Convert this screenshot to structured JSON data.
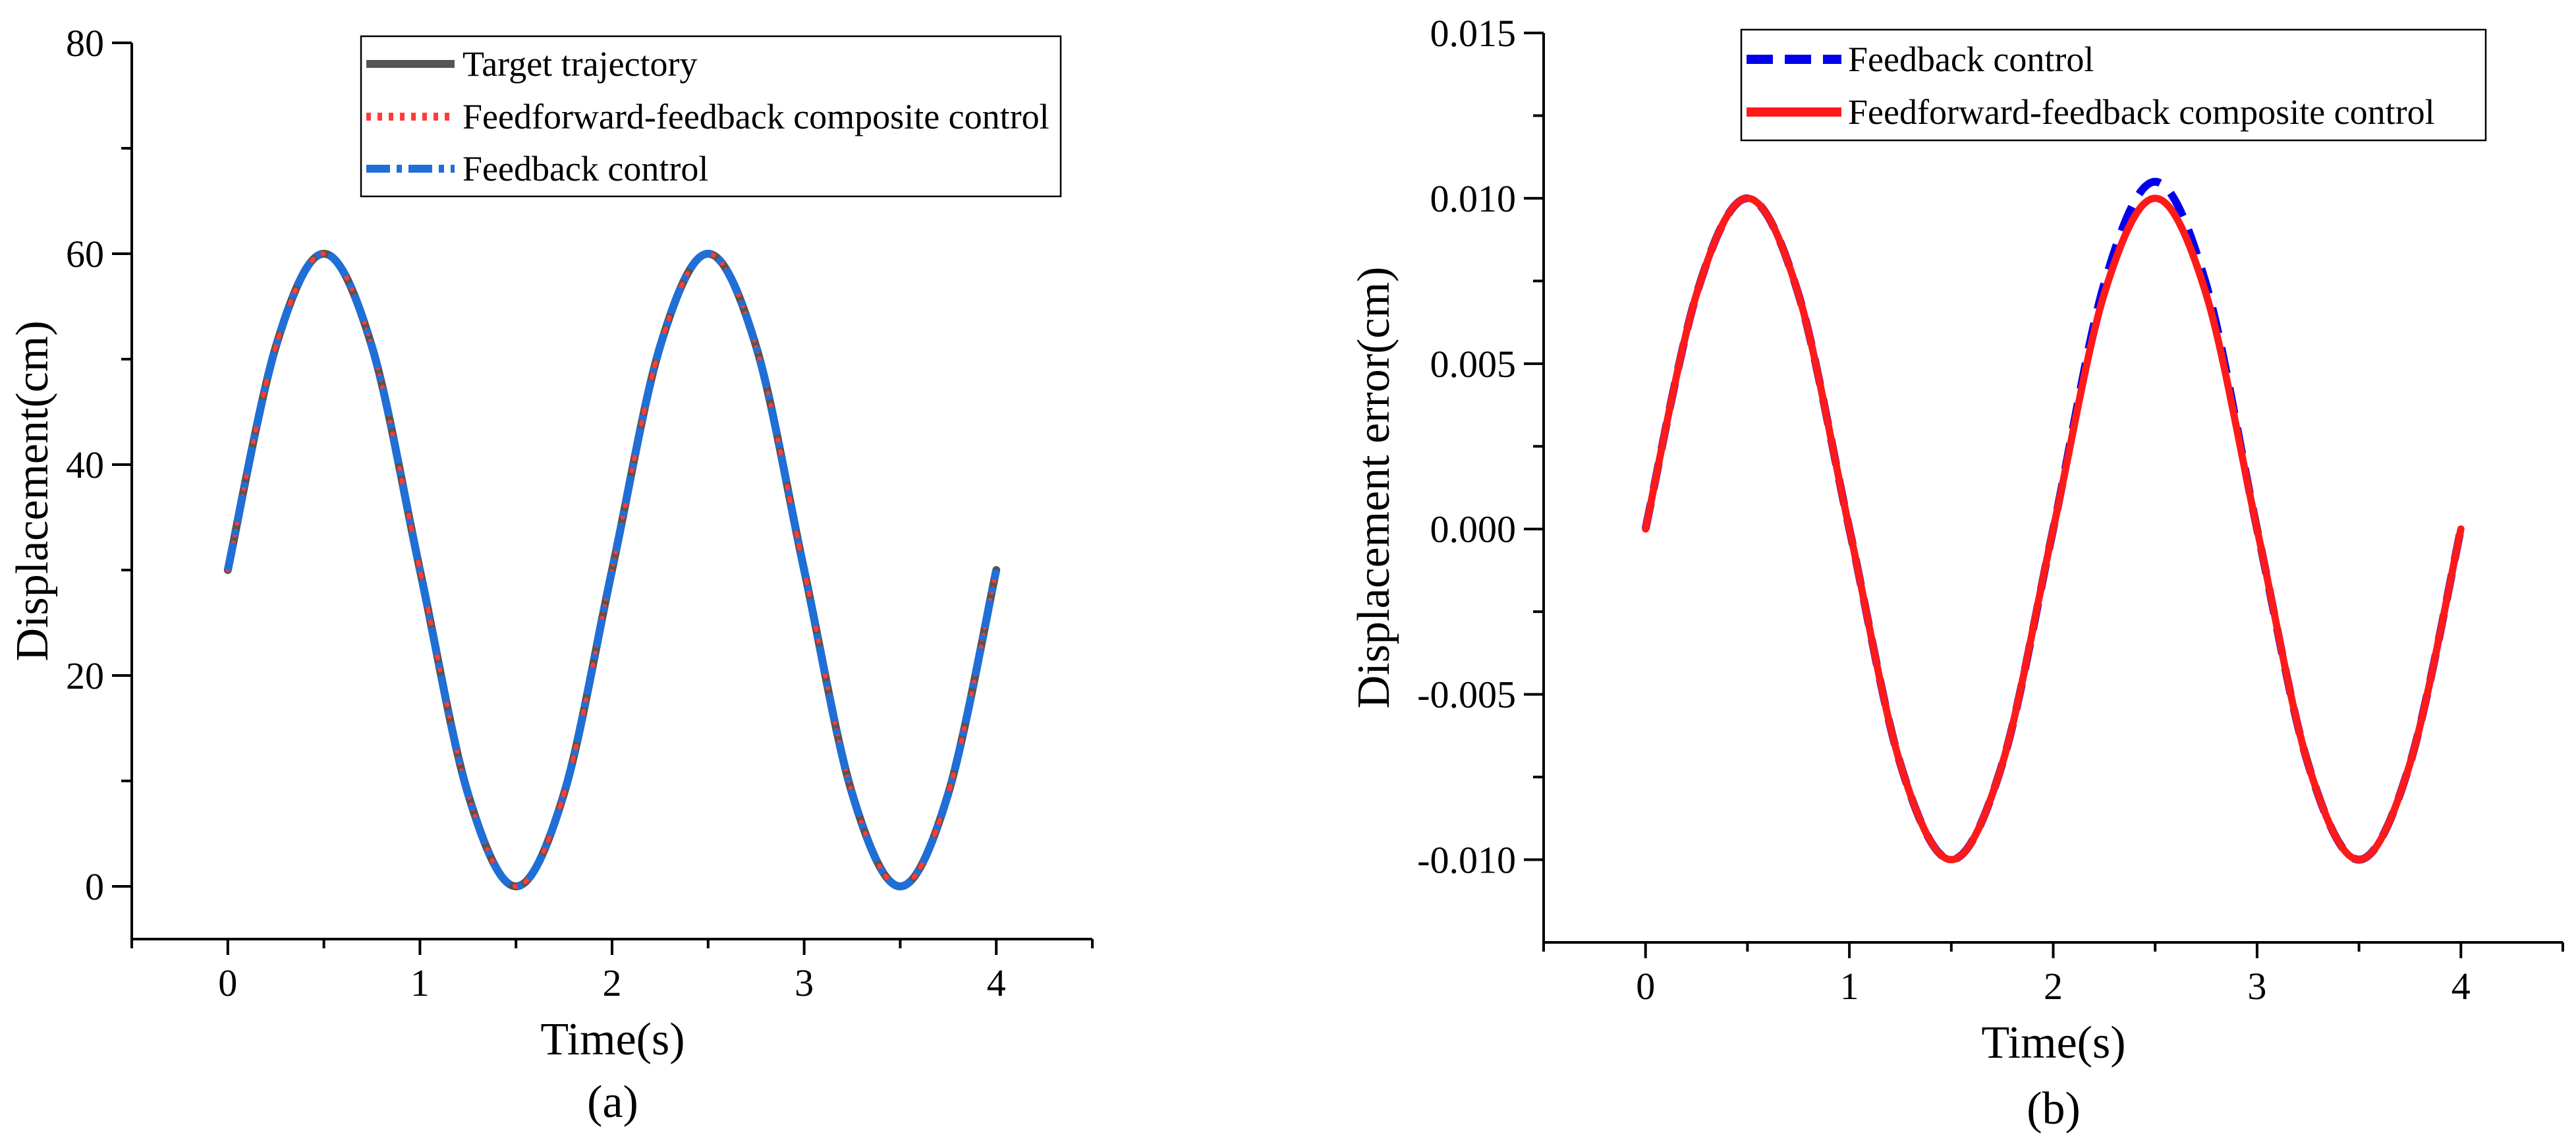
{
  "chart_data": [
    {
      "type": "line",
      "panel_label": "(a)",
      "title": "",
      "xlabel": "Time(s)",
      "ylabel": "Displacement(cm)",
      "xlim": [
        -0.5,
        4.5
      ],
      "ylim": [
        -5,
        80
      ],
      "xticks": [
        0,
        1,
        2,
        3,
        4
      ],
      "xtick_labels": [
        "0",
        "1",
        "2",
        "3",
        "4"
      ],
      "yticks": [
        0,
        20,
        40,
        60,
        80
      ],
      "ytick_labels": [
        "0",
        "20",
        "40",
        "60",
        "80"
      ],
      "grid": false,
      "legend_position": "top-right",
      "x": [
        0,
        0.25,
        0.5,
        0.75,
        1.0,
        1.25,
        1.5,
        1.75,
        2.0,
        2.25,
        2.5,
        2.75,
        3.0,
        3.25,
        3.5,
        3.75,
        4.0
      ],
      "series": [
        {
          "name": "Target trajectory",
          "color": "#555555",
          "line_style": "solid",
          "values": [
            30.0,
            51.2,
            60.0,
            51.2,
            30.0,
            8.8,
            0.0,
            8.8,
            30.0,
            51.2,
            60.0,
            51.2,
            30.0,
            8.8,
            0.0,
            8.8,
            30.0
          ]
        },
        {
          "name": "Feedforward-feedback composite control",
          "color": "#ff3b3b",
          "line_style": "dotted",
          "values": [
            30.0,
            51.2,
            60.0,
            51.2,
            30.0,
            8.8,
            0.0,
            8.8,
            30.0,
            51.2,
            60.0,
            51.2,
            30.0,
            8.8,
            0.0,
            8.8,
            30.0
          ]
        },
        {
          "name": "Feedback control",
          "color": "#1f6fd6",
          "line_style": "dash-dot",
          "values": [
            30.0,
            51.2,
            60.0,
            51.2,
            30.0,
            8.8,
            0.0,
            8.8,
            30.0,
            51.2,
            60.0,
            51.2,
            30.0,
            8.8,
            0.0,
            8.8,
            30.0
          ]
        }
      ]
    },
    {
      "type": "line",
      "panel_label": "(b)",
      "title": "",
      "xlabel": "Time(s)",
      "ylabel": "Displacement error(cm)",
      "xlim": [
        -0.5,
        4.5
      ],
      "ylim": [
        -0.0125,
        0.015
      ],
      "xticks": [
        0,
        1,
        2,
        3,
        4
      ],
      "xtick_labels": [
        "0",
        "1",
        "2",
        "3",
        "4"
      ],
      "yticks": [
        -0.01,
        -0.005,
        0.0,
        0.005,
        0.01,
        0.015
      ],
      "ytick_labels": [
        "-0.010",
        "-0.005",
        "0.000",
        "0.005",
        "0.010",
        "0.015"
      ],
      "grid": false,
      "legend_position": "top-right",
      "x": [
        0,
        0.25,
        0.5,
        0.75,
        1.0,
        1.25,
        1.5,
        1.75,
        2.0,
        2.25,
        2.5,
        2.75,
        3.0,
        3.25,
        3.5,
        3.75,
        4.0
      ],
      "series": [
        {
          "name": "Feedback control",
          "color": "#0000ee",
          "line_style": "dashed",
          "values": [
            0.0,
            0.0071,
            0.01,
            0.0071,
            0.0,
            -0.0071,
            -0.01,
            -0.0071,
            0.0,
            0.0074,
            0.0105,
            0.0074,
            0.0,
            -0.0071,
            -0.01,
            -0.0071,
            0.0
          ]
        },
        {
          "name": "Feedforward-feedback composite control",
          "color": "#ff1a1a",
          "line_style": "solid",
          "values": [
            0.0,
            0.0071,
            0.01,
            0.0071,
            0.0,
            -0.0071,
            -0.01,
            -0.0071,
            0.0,
            0.0071,
            0.01,
            0.0071,
            0.0,
            -0.0071,
            -0.01,
            -0.0071,
            0.0
          ]
        }
      ]
    }
  ]
}
